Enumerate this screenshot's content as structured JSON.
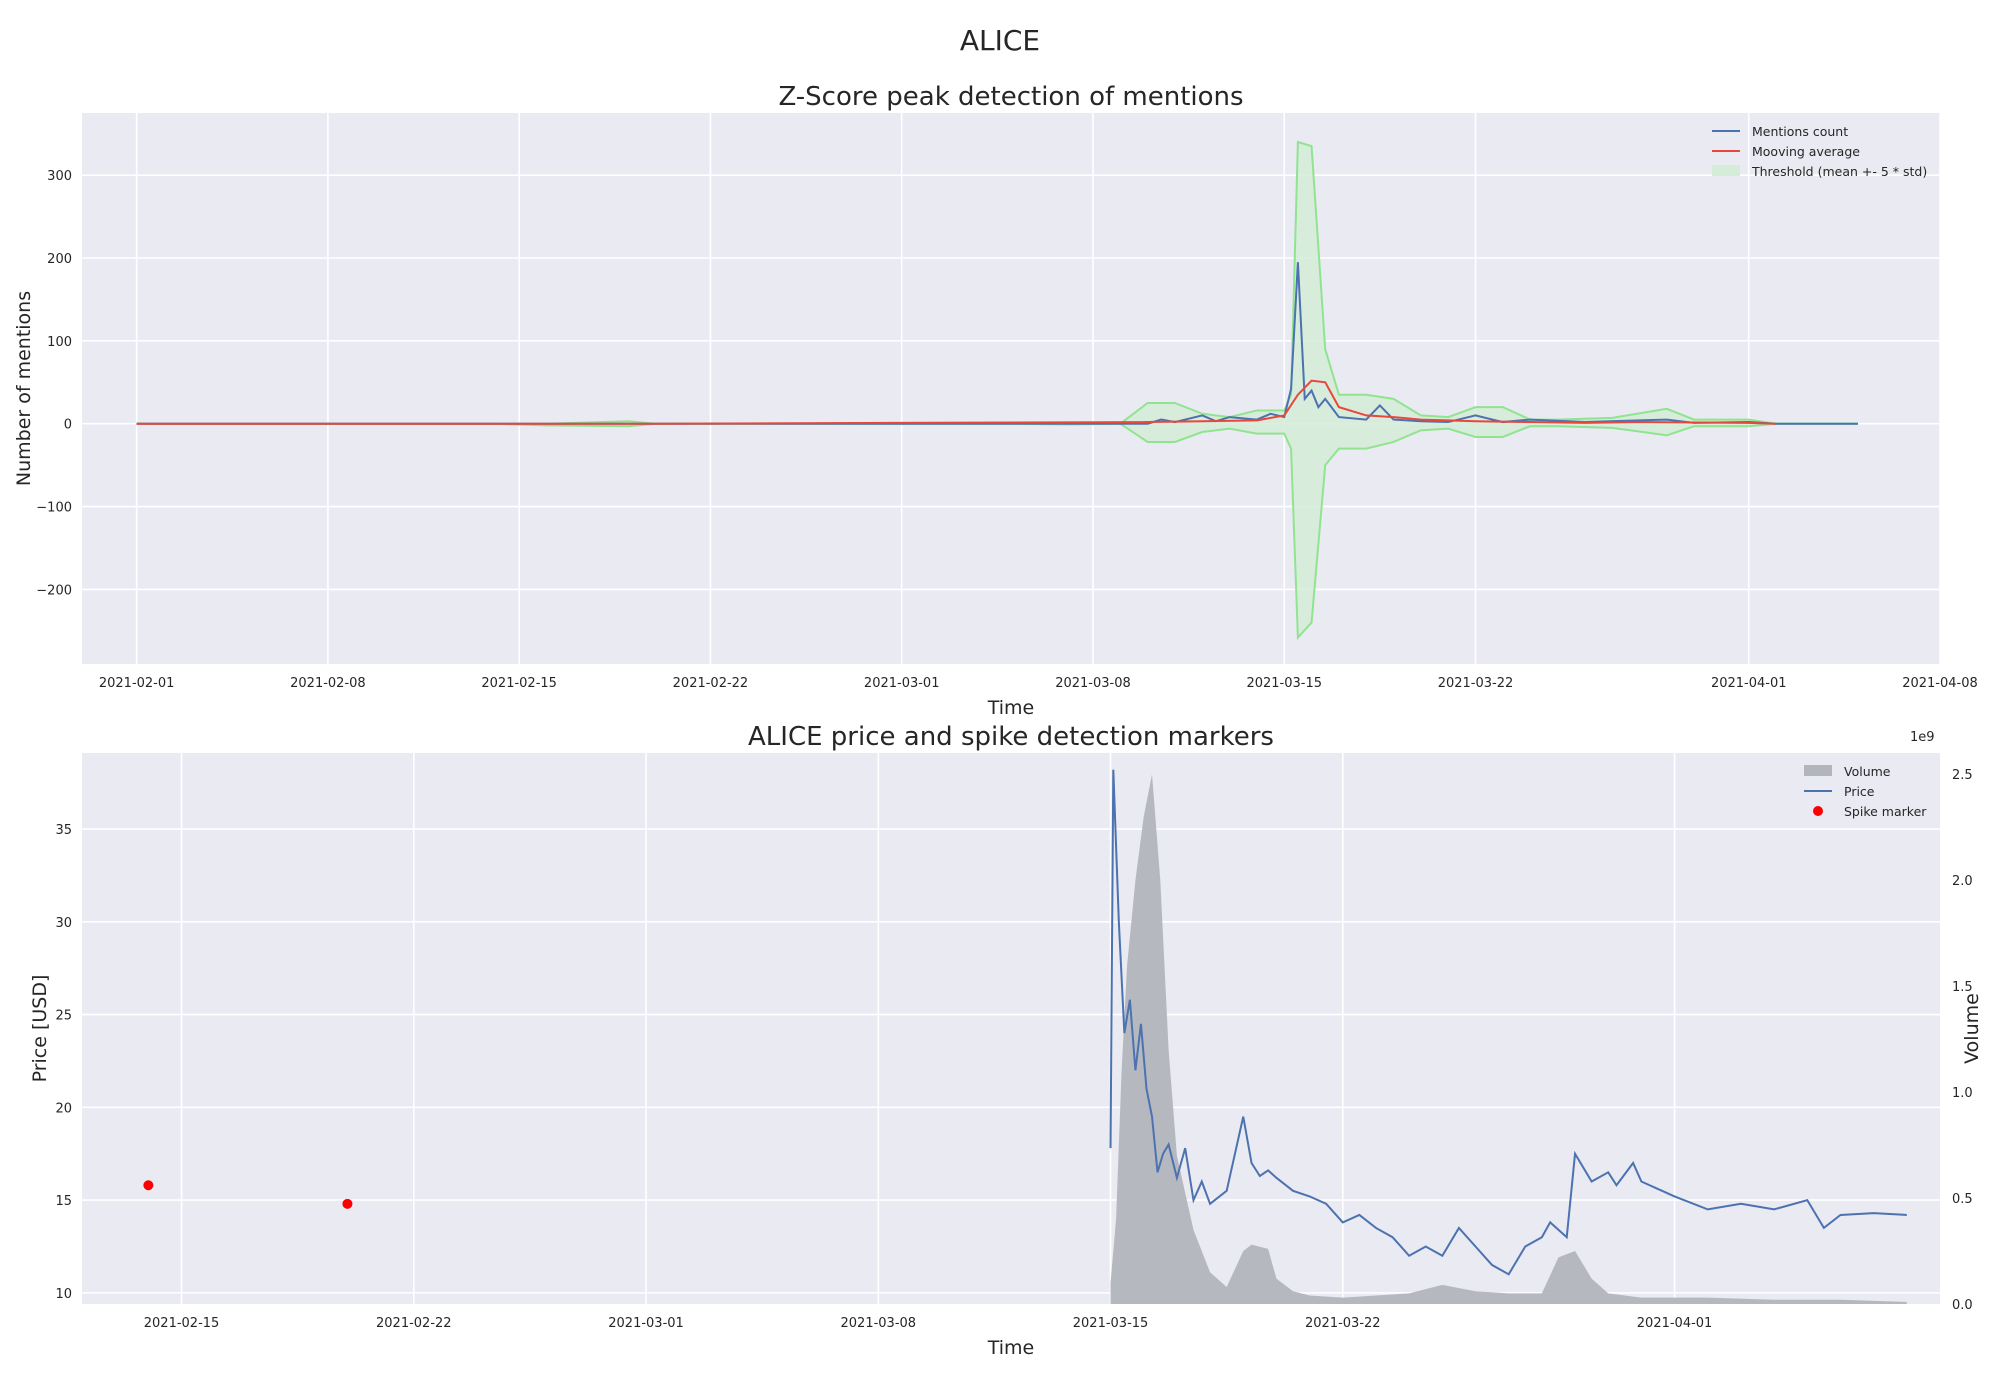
{
  "title": "ALICE",
  "chart_data": [
    {
      "type": "line",
      "title": "Z-Score peak detection of mentions",
      "xlabel": "Time",
      "ylabel": "Number of mentions",
      "xlim": [
        "2021-01-30",
        "2021-04-08"
      ],
      "ylim": [
        -290,
        375
      ],
      "xticks": [
        "2021-02-01",
        "2021-02-08",
        "2021-02-15",
        "2021-02-22",
        "2021-03-01",
        "2021-03-08",
        "2021-03-15",
        "2021-03-22",
        "2021-04-01",
        "2021-04-08"
      ],
      "yticks": [
        -200,
        -100,
        0,
        100,
        200,
        300
      ],
      "ytick_labels": [
        "−200",
        "−100",
        "0",
        "100",
        "200",
        "300"
      ],
      "grid": true,
      "legend_position": "top-right",
      "colors": {
        "mentions": "#4c72b0",
        "moving_average": "#e8473c",
        "threshold_fill": "#d5ecd8",
        "threshold_line": "#90e490"
      },
      "series": [
        {
          "name": "Mentions count",
          "x": [
            "2021-02-01",
            "2021-03-10",
            "2021-03-10T12",
            "2021-03-11",
            "2021-03-12",
            "2021-03-12T12",
            "2021-03-13",
            "2021-03-14",
            "2021-03-14T12",
            "2021-03-15",
            "2021-03-15T06",
            "2021-03-15T12",
            "2021-03-15T18",
            "2021-03-16",
            "2021-03-16T06",
            "2021-03-16T12",
            "2021-03-17",
            "2021-03-18",
            "2021-03-18T12",
            "2021-03-19",
            "2021-03-20",
            "2021-03-21",
            "2021-03-22",
            "2021-03-23",
            "2021-03-24",
            "2021-03-26",
            "2021-03-28",
            "2021-03-29",
            "2021-03-30",
            "2021-04-01",
            "2021-04-02",
            "2021-04-05"
          ],
          "values": [
            0,
            0,
            5,
            2,
            10,
            3,
            8,
            5,
            12,
            8,
            42,
            195,
            30,
            40,
            20,
            30,
            8,
            5,
            22,
            5,
            3,
            2,
            10,
            2,
            5,
            2,
            4,
            5,
            1,
            2,
            0,
            0
          ]
        },
        {
          "name": "Mooving average",
          "x": [
            "2021-02-01",
            "2021-02-19",
            "2021-02-20",
            "2021-03-10",
            "2021-03-12",
            "2021-03-14",
            "2021-03-15",
            "2021-03-15T12",
            "2021-03-16",
            "2021-03-16T12",
            "2021-03-17",
            "2021-03-18",
            "2021-03-19",
            "2021-03-20",
            "2021-03-21",
            "2021-03-22",
            "2021-03-24",
            "2021-03-26",
            "2021-03-28",
            "2021-04-01",
            "2021-04-02"
          ],
          "values": [
            0,
            0,
            0,
            2,
            3,
            4,
            10,
            35,
            52,
            50,
            20,
            10,
            8,
            5,
            4,
            3,
            2,
            1,
            2,
            1,
            0
          ]
        },
        {
          "name": "Threshold (mean +- 5 * std)",
          "x": [
            "2021-02-01",
            "2021-02-14",
            "2021-02-16",
            "2021-02-19",
            "2021-02-20",
            "2021-03-05",
            "2021-03-07",
            "2021-03-09",
            "2021-03-10",
            "2021-03-11",
            "2021-03-12",
            "2021-03-13",
            "2021-03-14",
            "2021-03-15",
            "2021-03-15T06",
            "2021-03-15T12",
            "2021-03-16",
            "2021-03-16T12",
            "2021-03-17",
            "2021-03-18",
            "2021-03-19",
            "2021-03-20",
            "2021-03-21",
            "2021-03-22",
            "2021-03-23",
            "2021-03-24",
            "2021-03-25",
            "2021-03-27",
            "2021-03-29",
            "2021-03-30",
            "2021-04-01",
            "2021-04-02",
            "2021-04-05"
          ],
          "upper": [
            0,
            0,
            0,
            3,
            0,
            0,
            0,
            0,
            25,
            25,
            12,
            8,
            16,
            16,
            35,
            340,
            335,
            90,
            35,
            35,
            30,
            10,
            8,
            20,
            20,
            5,
            5,
            7,
            18,
            5,
            5,
            0,
            0
          ],
          "lower": [
            0,
            0,
            -2,
            -3,
            0,
            0,
            -1,
            0,
            -22,
            -22,
            -10,
            -6,
            -12,
            -12,
            -30,
            -258,
            -240,
            -50,
            -30,
            -30,
            -22,
            -8,
            -6,
            -16,
            -16,
            -3,
            -3,
            -5,
            -14,
            -3,
            -3,
            0,
            0
          ]
        }
      ]
    },
    {
      "type": "line",
      "title": "ALICE price and spike detection markers",
      "xlabel": "Time",
      "ylabel": "Price [USD]",
      "y2label": "Volume",
      "y2_offset_label": "1e9",
      "xlim": [
        "2021-02-12",
        "2021-04-09"
      ],
      "ylim": [
        9.4,
        39.1
      ],
      "y2lim": [
        0,
        2.6
      ],
      "xticks": [
        "2021-02-15",
        "2021-02-22",
        "2021-03-01",
        "2021-03-08",
        "2021-03-15",
        "2021-03-22",
        "2021-04-01"
      ],
      "yticks": [
        10,
        15,
        20,
        25,
        30,
        35
      ],
      "y2ticks": [
        "0.0",
        "0.5",
        "1.0",
        "1.5",
        "2.0",
        "2.5"
      ],
      "grid": true,
      "legend_position": "top-right",
      "colors": {
        "price": "#4c72b0",
        "volume": "#b3b5bd",
        "spike": "#ff0000"
      },
      "series": [
        {
          "name": "Volume",
          "unit": "1e9",
          "x": [
            "2021-03-15",
            "2021-03-15T04",
            "2021-03-15T08",
            "2021-03-15T12",
            "2021-03-15T18",
            "2021-03-16",
            "2021-03-16T06",
            "2021-03-16T12",
            "2021-03-16T18",
            "2021-03-17",
            "2021-03-17T12",
            "2021-03-18",
            "2021-03-18T12",
            "2021-03-19",
            "2021-03-19T06",
            "2021-03-19T18",
            "2021-03-20",
            "2021-03-20T12",
            "2021-03-21",
            "2021-03-22",
            "2021-03-23",
            "2021-03-24",
            "2021-03-25",
            "2021-03-26",
            "2021-03-27",
            "2021-03-28",
            "2021-03-28T12",
            "2021-03-29",
            "2021-03-29T12",
            "2021-03-30",
            "2021-03-31",
            "2021-04-01",
            "2021-04-02",
            "2021-04-04",
            "2021-04-06",
            "2021-04-08"
          ],
          "values": [
            0.1,
            0.4,
            1.1,
            1.6,
            2.0,
            2.3,
            2.5,
            2.0,
            1.2,
            0.7,
            0.35,
            0.15,
            0.08,
            0.25,
            0.28,
            0.26,
            0.12,
            0.06,
            0.04,
            0.03,
            0.04,
            0.05,
            0.09,
            0.06,
            0.05,
            0.05,
            0.22,
            0.25,
            0.12,
            0.05,
            0.03,
            0.03,
            0.03,
            0.02,
            0.02,
            0.01
          ]
        },
        {
          "name": "Price",
          "x": [
            "2021-03-15",
            "2021-03-15T02",
            "2021-03-15T06",
            "2021-03-15T10",
            "2021-03-15T14",
            "2021-03-15T18",
            "2021-03-15T22",
            "2021-03-16T02",
            "2021-03-16T06",
            "2021-03-16T10",
            "2021-03-16T14",
            "2021-03-16T18",
            "2021-03-17",
            "2021-03-17T06",
            "2021-03-17T12",
            "2021-03-17T18",
            "2021-03-18",
            "2021-03-18T12",
            "2021-03-19",
            "2021-03-19T06",
            "2021-03-19T12",
            "2021-03-19T18",
            "2021-03-20",
            "2021-03-20T12",
            "2021-03-21",
            "2021-03-21T12",
            "2021-03-22",
            "2021-03-22T12",
            "2021-03-23",
            "2021-03-23T12",
            "2021-03-24",
            "2021-03-24T12",
            "2021-03-25",
            "2021-03-25T12",
            "2021-03-26",
            "2021-03-26T12",
            "2021-03-27",
            "2021-03-27T12",
            "2021-03-28",
            "2021-03-28T06",
            "2021-03-28T18",
            "2021-03-29",
            "2021-03-29T12",
            "2021-03-30",
            "2021-03-30T06",
            "2021-03-30T18",
            "2021-03-31",
            "2021-04-01",
            "2021-04-02",
            "2021-04-03",
            "2021-04-04",
            "2021-04-05",
            "2021-04-05T12",
            "2021-04-06",
            "2021-04-07",
            "2021-04-08"
          ],
          "values": [
            17.8,
            38.2,
            30.0,
            24.0,
            25.8,
            22.0,
            24.5,
            21.0,
            19.5,
            16.5,
            17.5,
            18.0,
            16.2,
            17.8,
            15.0,
            16.0,
            14.8,
            15.5,
            19.5,
            17.0,
            16.3,
            16.6,
            16.2,
            15.5,
            15.2,
            14.8,
            13.8,
            14.2,
            13.5,
            13.0,
            12.0,
            12.5,
            12.0,
            13.5,
            12.5,
            11.5,
            11.0,
            12.5,
            13.0,
            13.8,
            13.0,
            17.5,
            16.0,
            16.5,
            15.8,
            17.0,
            16.0,
            15.2,
            14.5,
            14.8,
            14.5,
            15.0,
            13.5,
            14.2,
            14.3,
            14.2
          ]
        },
        {
          "name": "Spike marker",
          "x": [
            "2021-02-14",
            "2021-02-20"
          ],
          "values": [
            15.8,
            14.8
          ]
        }
      ]
    }
  ]
}
